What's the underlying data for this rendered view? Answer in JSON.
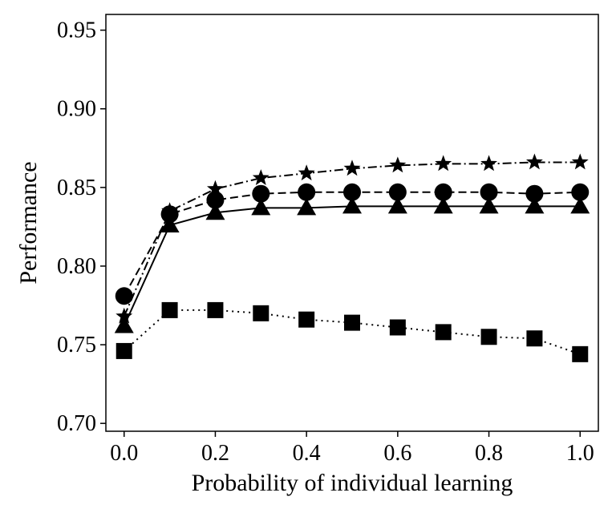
{
  "chart_data": {
    "type": "line",
    "title": "",
    "xlabel": "Probability of individual learning",
    "ylabel": "Performance",
    "xlim": [
      -0.04,
      1.04
    ],
    "ylim": [
      0.695,
      0.96
    ],
    "x_ticks": [
      0.0,
      0.2,
      0.4,
      0.6,
      0.8,
      1.0
    ],
    "x_tick_labels": [
      "0.0",
      "0.2",
      "0.4",
      "0.6",
      "0.8",
      "1.0"
    ],
    "y_ticks": [
      0.7,
      0.75,
      0.8,
      0.85,
      0.9,
      0.95
    ],
    "y_tick_labels": [
      "0.70",
      "0.75",
      "0.80",
      "0.85",
      "0.90",
      "0.95"
    ],
    "grid": false,
    "x": [
      0.0,
      0.1,
      0.2,
      0.3,
      0.4,
      0.5,
      0.6,
      0.7,
      0.8,
      0.9,
      1.0
    ],
    "series": [
      {
        "marker": "star",
        "line_style": "dash-dot",
        "color": "#000000",
        "values": [
          0.768,
          0.835,
          0.849,
          0.856,
          0.859,
          0.862,
          0.864,
          0.865,
          0.865,
          0.866,
          0.866
        ]
      },
      {
        "marker": "circle",
        "line_style": "dashed",
        "color": "#000000",
        "values": [
          0.781,
          0.833,
          0.842,
          0.846,
          0.847,
          0.847,
          0.847,
          0.847,
          0.847,
          0.846,
          0.847
        ]
      },
      {
        "marker": "triangle",
        "line_style": "solid",
        "color": "#000000",
        "values": [
          0.762,
          0.826,
          0.834,
          0.837,
          0.837,
          0.838,
          0.838,
          0.838,
          0.838,
          0.838,
          0.838
        ]
      },
      {
        "marker": "square",
        "line_style": "dotted",
        "color": "#000000",
        "values": [
          0.746,
          0.772,
          0.772,
          0.77,
          0.766,
          0.764,
          0.761,
          0.758,
          0.755,
          0.754,
          0.744
        ]
      }
    ]
  }
}
